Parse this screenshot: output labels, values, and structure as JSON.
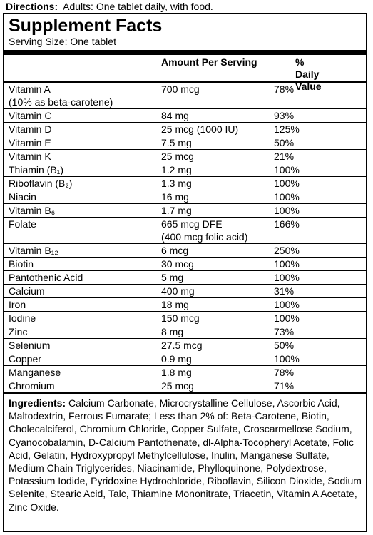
{
  "directions": {
    "label": "Directions:",
    "text": "Adults:  One tablet daily, with food."
  },
  "title": "Supplement Facts",
  "serving_size": "Serving Size: One tablet",
  "header": {
    "amount": "Amount Per Serving",
    "dv": "% Daily Value"
  },
  "rows": [
    {
      "name": "Vitamin A",
      "note": "(10% as beta-carotene)",
      "amount": "700 mcg",
      "dv": "78%"
    },
    {
      "name": "Vitamin C",
      "amount": "84 mg",
      "dv": "93%"
    },
    {
      "name": "Vitamin D",
      "amount": "25 mcg (1000 IU)",
      "dv": "125%"
    },
    {
      "name": "Vitamin E",
      "amount": "7.5 mg",
      "dv": "50%"
    },
    {
      "name": "Vitamin K",
      "amount": "25 mcg",
      "dv": "21%"
    },
    {
      "name": "Thiamin (B₁)",
      "amount": "1.2 mg",
      "dv": "100%"
    },
    {
      "name": "Riboflavin (B₂)",
      "amount": "1.3 mg",
      "dv": "100%"
    },
    {
      "name": "Niacin",
      "amount": "16 mg",
      "dv": "100%"
    },
    {
      "name": "Vitamin B₆",
      "amount": "1.7 mg",
      "dv": "100%"
    },
    {
      "name": "Folate",
      "amount": "665 mcg DFE",
      "amount_note": "(400 mcg folic acid)",
      "dv": "166%"
    },
    {
      "name": "Vitamin B₁₂",
      "amount": "6 mcg",
      "dv": "250%"
    },
    {
      "name": "Biotin",
      "amount": "30 mcg",
      "dv": "100%"
    },
    {
      "name": "Pantothenic Acid",
      "amount": "5 mg",
      "dv": "100%"
    },
    {
      "name": "Calcium",
      "amount": "400 mg",
      "dv": "31%"
    },
    {
      "name": "Iron",
      "amount": "18 mg",
      "dv": "100%"
    },
    {
      "name": "Iodine",
      "amount": "150 mcg",
      "dv": "100%"
    },
    {
      "name": "Zinc",
      "amount": "8 mg",
      "dv": "73%"
    },
    {
      "name": "Selenium",
      "amount": "27.5 mcg",
      "dv": "50%"
    },
    {
      "name": "Copper",
      "amount": "0.9 mg",
      "dv": "100%"
    },
    {
      "name": "Manganese",
      "amount": "1.8 mg",
      "dv": "78%"
    },
    {
      "name": "Chromium",
      "amount": "25 mcg",
      "dv": "71%"
    }
  ],
  "ingredients": {
    "label": "Ingredients:",
    "text": "Calcium Carbonate, Microcrystalline Cellulose, Ascorbic Acid, Maltodextrin, Ferrous Fumarate; Less than 2% of: Beta-Carotene, Biotin, Cholecalciferol, Chromium Chloride, Copper Sulfate, Croscarmellose Sodium, Cyanocobalamin, D-Calcium Pantothenate, dl-Alpha-Tocopheryl Acetate, Folic Acid, Gelatin, Hydroxypropyl Methylcellulose, Inulin, Manganese Sulfate, Medium Chain Triglycerides, Niacinamide, Phylloquinone, Polydextrose, Potassium Iodide, Pyridoxine Hydrochloride, Riboflavin, Silicon Dioxide, Sodium Selenite, Stearic Acid, Talc, Thiamine Mononitrate, Triacetin, Vitamin A Acetate, Zinc Oxide."
  }
}
